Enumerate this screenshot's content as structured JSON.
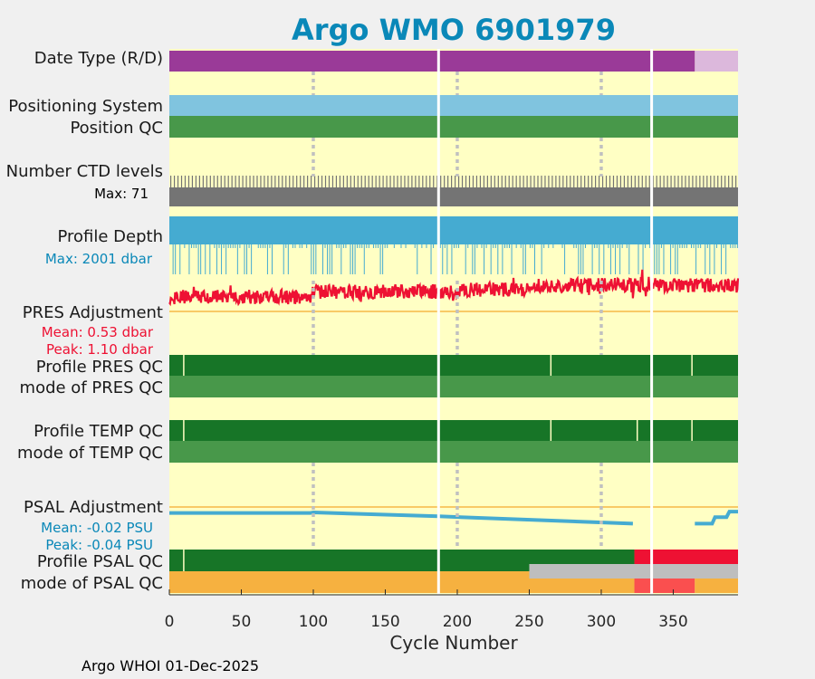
{
  "title": "Argo WMO 6901979",
  "footer": "Argo WHOI 01-Dec-2025",
  "colors": {
    "background": "#f0f0f0",
    "plot_bg": "#ffffc4",
    "title": "#0a88b8",
    "purple": "#9a3a98",
    "light_purple": "#dcb8dc",
    "light_blue": "#80c4df",
    "green": "#48984a",
    "dark_green": "#177527",
    "gray": "#747474",
    "profile_blue": "#45abd1",
    "red": "#ee1133",
    "orange": "#f6b140",
    "salmon": "#fa4f4f",
    "light_gray": "#bebebe",
    "psal_blue": "#45abd1",
    "ref_line": "#f5b847"
  },
  "chart_data": {
    "type": "timeline",
    "xlabel": "Cycle Number",
    "xlim": [
      0,
      395
    ],
    "xticks": [
      0,
      50,
      100,
      150,
      200,
      250,
      300,
      350
    ],
    "gaps": [
      187,
      335
    ],
    "dotted_lines": [
      100,
      200,
      300
    ],
    "rows": [
      {
        "label": "Date Type (R/D)",
        "segments": [
          [
            0,
            187,
            "purple"
          ],
          [
            187,
            335,
            "purple"
          ],
          [
            335,
            365,
            "purple"
          ],
          [
            365,
            395,
            "light_purple"
          ]
        ]
      },
      {
        "label": "Positioning System",
        "segments": [
          [
            0,
            187,
            "light_blue"
          ],
          [
            187,
            335,
            "light_blue"
          ],
          [
            335,
            395,
            "light_blue"
          ]
        ]
      },
      {
        "label": "Position QC",
        "segments": [
          [
            0,
            187,
            "green"
          ],
          [
            187,
            335,
            "green"
          ],
          [
            335,
            395,
            "green"
          ]
        ]
      },
      {
        "label": "Number CTD levels",
        "max_label": "Max: 71",
        "max": 71
      },
      {
        "label": "Profile Depth",
        "max_label": "Max: 2001 dbar",
        "max": 2001
      },
      {
        "label": "PRES Adjustment",
        "mean_label": "Mean: 0.53 dbar",
        "peak_label": "Peak: 1.10 dbar",
        "mean": 0.53,
        "peak": 1.1
      },
      {
        "label": "Profile PRES QC",
        "segments": [
          [
            0,
            187,
            "dark_green"
          ],
          [
            187,
            335,
            "dark_green"
          ],
          [
            335,
            395,
            "dark_green"
          ]
        ],
        "ticks": [
          10,
          265,
          363
        ]
      },
      {
        "label": "mode of PRES QC",
        "segments": [
          [
            0,
            187,
            "green"
          ],
          [
            187,
            335,
            "green"
          ],
          [
            335,
            395,
            "green"
          ]
        ]
      },
      {
        "label": "Profile TEMP QC",
        "segments": [
          [
            0,
            187,
            "dark_green"
          ],
          [
            187,
            335,
            "dark_green"
          ],
          [
            335,
            395,
            "dark_green"
          ]
        ],
        "ticks": [
          10,
          265,
          325,
          363
        ]
      },
      {
        "label": "mode of TEMP QC",
        "segments": [
          [
            0,
            187,
            "green"
          ],
          [
            187,
            335,
            "green"
          ],
          [
            335,
            395,
            "green"
          ]
        ]
      },
      {
        "label": "PSAL Adjustment",
        "mean_label": "Mean: -0.02 PSU",
        "peak_label": "Peak: -0.04 PSU",
        "mean": -0.02,
        "peak": -0.04,
        "series": [
          [
            [
              0,
              -0.0155
            ],
            [
              98,
              -0.0155
            ],
            [
              100,
              -0.014
            ],
            [
              187,
              -0.024
            ]
          ],
          [
            [
              187,
              -0.024
            ],
            [
              322,
              -0.043
            ]
          ],
          [
            [
              365,
              -0.043
            ],
            [
              377,
              -0.043
            ],
            [
              379,
              -0.026
            ],
            [
              387,
              -0.026
            ],
            [
              389,
              -0.012
            ],
            [
              395,
              -0.012
            ]
          ]
        ]
      },
      {
        "label": "Profile PSAL QC",
        "segments": [
          [
            0,
            187,
            "dark_green"
          ],
          [
            187,
            323,
            "dark_green"
          ],
          [
            323,
            335,
            "red"
          ],
          [
            335,
            395,
            "red"
          ]
        ],
        "ticks": [
          10
        ]
      },
      {
        "label": "mode of PSAL QC",
        "segments": [
          [
            0,
            187,
            "orange"
          ],
          [
            187,
            323,
            "orange"
          ],
          [
            323,
            335,
            "salmon"
          ],
          [
            335,
            365,
            "salmon"
          ],
          [
            365,
            395,
            "orange"
          ]
        ],
        "overlay": [
          250,
          395,
          "light_gray"
        ]
      }
    ]
  }
}
